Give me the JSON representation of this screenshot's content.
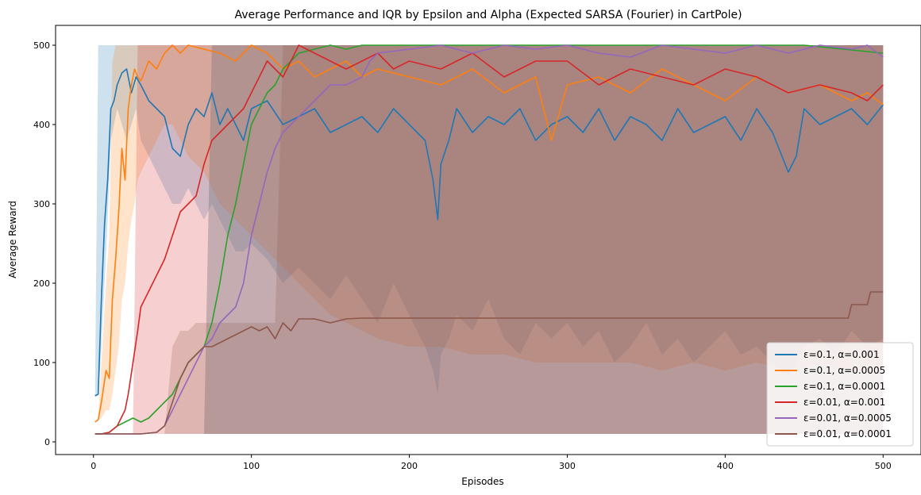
{
  "chart_data": {
    "type": "line",
    "title": "Average Performance and IQR by Epsilon and Alpha (Expected SARSA (Fourier) in CartPole)",
    "xlabel": "Episodes",
    "ylabel": "Average Reward",
    "xlim": [
      -24,
      524
    ],
    "ylim": [
      -16,
      525
    ],
    "xticks": [
      0,
      100,
      200,
      300,
      400,
      500
    ],
    "yticks": [
      0,
      100,
      200,
      300,
      400,
      500
    ],
    "grid": false,
    "legend_position": "bottom-right",
    "series": [
      {
        "name": "ε=0.1, α=0.001",
        "color": "#1f77b4",
        "x": [
          1,
          3,
          5,
          7,
          9,
          11,
          13,
          15,
          18,
          21,
          24,
          27,
          30,
          35,
          40,
          45,
          50,
          55,
          60,
          65,
          70,
          75,
          80,
          85,
          90,
          95,
          100,
          110,
          120,
          130,
          140,
          150,
          160,
          170,
          180,
          190,
          200,
          210,
          215,
          218,
          220,
          225,
          230,
          240,
          250,
          260,
          270,
          280,
          290,
          300,
          310,
          320,
          330,
          340,
          350,
          360,
          370,
          380,
          390,
          400,
          410,
          420,
          430,
          440,
          445,
          450,
          460,
          470,
          480,
          490,
          500
        ],
        "y": [
          58,
          60,
          180,
          275,
          330,
          420,
          430,
          450,
          465,
          470,
          440,
          460,
          450,
          430,
          420,
          410,
          370,
          360,
          400,
          420,
          410,
          440,
          400,
          420,
          400,
          380,
          420,
          430,
          400,
          410,
          420,
          390,
          400,
          410,
          390,
          420,
          400,
          380,
          330,
          280,
          350,
          380,
          420,
          390,
          410,
          400,
          420,
          380,
          400,
          410,
          390,
          420,
          380,
          410,
          400,
          380,
          420,
          390,
          400,
          410,
          380,
          420,
          390,
          340,
          360,
          420,
          400,
          410,
          420,
          400,
          425
        ],
        "q1": [
          58,
          60,
          120,
          200,
          280,
          380,
          400,
          420,
          400,
          380,
          400,
          420,
          380,
          360,
          340,
          320,
          300,
          300,
          320,
          300,
          280,
          300,
          280,
          260,
          240,
          240,
          250,
          230,
          200,
          220,
          200,
          180,
          210,
          180,
          150,
          200,
          160,
          120,
          90,
          60,
          110,
          130,
          160,
          140,
          180,
          130,
          110,
          150,
          130,
          150,
          120,
          140,
          100,
          120,
          150,
          110,
          130,
          100,
          120,
          140,
          110,
          120,
          100,
          80,
          100,
          120,
          130,
          110,
          140,
          120,
          130
        ],
        "q3": [
          60,
          500,
          500,
          500,
          500,
          500,
          500,
          500,
          500,
          500,
          500,
          500,
          500,
          500,
          500,
          500,
          500,
          500,
          500,
          500,
          500,
          500,
          500,
          500,
          500,
          500,
          500,
          500,
          500,
          500,
          500,
          500,
          500,
          500,
          500,
          500,
          500,
          500,
          500,
          500,
          500,
          500,
          500,
          500,
          500,
          500,
          500,
          500,
          500,
          500,
          500,
          500,
          500,
          500,
          500,
          500,
          500,
          500,
          500,
          500,
          500,
          500,
          500,
          500,
          500,
          500,
          500,
          500,
          500,
          500,
          500
        ]
      },
      {
        "name": "ε=0.1, α=0.0005",
        "color": "#ff7f0e",
        "x": [
          1,
          3,
          5,
          8,
          10,
          12,
          14,
          16,
          18,
          20,
          22,
          24,
          26,
          28,
          30,
          35,
          40,
          45,
          50,
          55,
          60,
          70,
          80,
          90,
          100,
          110,
          120,
          130,
          140,
          150,
          160,
          170,
          180,
          200,
          220,
          240,
          260,
          280,
          290,
          300,
          320,
          340,
          360,
          380,
          400,
          420,
          440,
          460,
          480,
          490,
          500
        ],
        "y": [
          25,
          28,
          50,
          90,
          80,
          180,
          230,
          290,
          370,
          330,
          420,
          450,
          470,
          460,
          455,
          480,
          470,
          490,
          500,
          490,
          500,
          495,
          490,
          480,
          500,
          490,
          470,
          480,
          460,
          470,
          480,
          460,
          470,
          460,
          450,
          470,
          440,
          460,
          380,
          450,
          460,
          440,
          470,
          450,
          430,
          460,
          440,
          450,
          430,
          440,
          425
        ],
        "q1": [
          25,
          28,
          30,
          40,
          40,
          60,
          90,
          120,
          180,
          200,
          250,
          280,
          300,
          330,
          340,
          360,
          380,
          400,
          400,
          380,
          360,
          340,
          300,
          280,
          260,
          240,
          220,
          200,
          180,
          160,
          150,
          140,
          130,
          120,
          120,
          110,
          110,
          100,
          100,
          100,
          100,
          100,
          90,
          100,
          90,
          100,
          90,
          100,
          90,
          90,
          90
        ],
        "q3": [
          25,
          30,
          100,
          200,
          260,
          480,
          500,
          500,
          500,
          500,
          500,
          500,
          500,
          500,
          500,
          500,
          500,
          500,
          500,
          500,
          500,
          500,
          500,
          500,
          500,
          500,
          500,
          500,
          500,
          500,
          500,
          500,
          500,
          500,
          500,
          500,
          500,
          500,
          500,
          500,
          500,
          500,
          500,
          500,
          500,
          500,
          500,
          500,
          500,
          500,
          500
        ]
      },
      {
        "name": "ε=0.1, α=0.0001",
        "color": "#2ca02c",
        "x": [
          1,
          5,
          10,
          15,
          20,
          25,
          30,
          35,
          40,
          45,
          50,
          55,
          60,
          65,
          70,
          75,
          80,
          85,
          90,
          95,
          100,
          105,
          110,
          115,
          120,
          125,
          130,
          140,
          150,
          160,
          170,
          180,
          200,
          250,
          300,
          350,
          400,
          450,
          500
        ],
        "y": [
          10,
          10,
          12,
          20,
          25,
          30,
          25,
          30,
          40,
          50,
          60,
          80,
          100,
          110,
          120,
          150,
          200,
          260,
          300,
          350,
          400,
          420,
          440,
          450,
          470,
          480,
          490,
          495,
          500,
          495,
          500,
          500,
          500,
          500,
          500,
          500,
          500,
          500,
          490
        ],
        "q1": [
          10,
          10,
          10,
          10,
          10,
          10,
          10,
          10,
          10,
          10,
          10,
          10,
          10,
          10,
          10,
          10,
          10,
          10,
          10,
          10,
          10,
          10,
          10,
          10,
          10,
          10,
          10,
          10,
          10,
          10,
          10,
          10,
          10,
          10,
          10,
          10,
          10,
          10,
          10
        ],
        "q3": [
          10,
          10,
          10,
          10,
          10,
          10,
          10,
          10,
          10,
          10,
          10,
          10,
          10,
          10,
          10,
          500,
          500,
          500,
          500,
          500,
          500,
          500,
          500,
          500,
          500,
          500,
          500,
          500,
          500,
          500,
          500,
          500,
          500,
          500,
          500,
          500,
          500,
          500,
          500
        ]
      },
      {
        "name": "ε=0.01, α=0.001",
        "color": "#d62728",
        "x": [
          1,
          5,
          10,
          15,
          20,
          22,
          25,
          28,
          30,
          35,
          40,
          45,
          50,
          55,
          60,
          65,
          70,
          75,
          80,
          85,
          90,
          95,
          100,
          105,
          110,
          115,
          120,
          125,
          130,
          135,
          140,
          145,
          150,
          160,
          170,
          180,
          190,
          200,
          220,
          240,
          260,
          280,
          300,
          320,
          340,
          360,
          380,
          400,
          420,
          440,
          460,
          480,
          490,
          500
        ],
        "y": [
          10,
          10,
          12,
          20,
          40,
          60,
          100,
          140,
          170,
          190,
          210,
          230,
          260,
          290,
          300,
          310,
          350,
          380,
          390,
          400,
          410,
          420,
          440,
          460,
          480,
          470,
          460,
          480,
          500,
          495,
          490,
          485,
          480,
          470,
          480,
          490,
          470,
          480,
          470,
          490,
          460,
          480,
          480,
          450,
          470,
          460,
          450,
          470,
          460,
          440,
          450,
          440,
          430,
          450
        ],
        "q1": [
          10,
          10,
          10,
          10,
          10,
          10,
          10,
          10,
          10,
          10,
          10,
          10,
          10,
          10,
          10,
          10,
          10,
          10,
          10,
          10,
          10,
          10,
          10,
          10,
          10,
          10,
          10,
          10,
          10,
          10,
          10,
          10,
          10,
          10,
          10,
          10,
          10,
          10,
          10,
          10,
          10,
          10,
          10,
          10,
          10,
          10,
          10,
          10,
          10,
          10,
          10,
          10,
          10,
          10
        ],
        "q3": [
          10,
          10,
          10,
          10,
          10,
          10,
          10,
          500,
          500,
          500,
          500,
          500,
          500,
          500,
          500,
          500,
          500,
          500,
          500,
          500,
          500,
          500,
          500,
          500,
          500,
          500,
          500,
          500,
          500,
          500,
          500,
          500,
          500,
          500,
          500,
          500,
          500,
          500,
          500,
          500,
          500,
          500,
          500,
          500,
          500,
          500,
          500,
          500,
          500,
          500,
          500,
          500,
          500,
          500
        ]
      },
      {
        "name": "ε=0.01, α=0.0005",
        "color": "#9467bd",
        "x": [
          1,
          10,
          20,
          30,
          40,
          45,
          50,
          55,
          60,
          65,
          70,
          75,
          80,
          85,
          90,
          95,
          100,
          105,
          110,
          115,
          120,
          125,
          130,
          140,
          150,
          160,
          170,
          175,
          180,
          200,
          220,
          240,
          260,
          280,
          300,
          320,
          340,
          360,
          380,
          400,
          420,
          440,
          460,
          480,
          490,
          500
        ],
        "y": [
          10,
          10,
          10,
          10,
          12,
          20,
          40,
          60,
          80,
          100,
          120,
          130,
          150,
          160,
          170,
          200,
          260,
          300,
          340,
          370,
          390,
          400,
          410,
          430,
          450,
          450,
          460,
          480,
          490,
          495,
          500,
          490,
          500,
          495,
          500,
          490,
          485,
          500,
          495,
          490,
          500,
          490,
          500,
          495,
          500,
          485
        ],
        "q1": [
          10,
          10,
          10,
          10,
          10,
          10,
          10,
          10,
          10,
          10,
          10,
          10,
          10,
          10,
          10,
          10,
          10,
          10,
          10,
          10,
          10,
          10,
          10,
          10,
          10,
          10,
          10,
          10,
          10,
          10,
          10,
          10,
          10,
          10,
          10,
          10,
          10,
          10,
          10,
          10,
          10,
          10,
          10,
          10,
          10,
          10
        ],
        "q3": [
          10,
          10,
          10,
          10,
          10,
          10,
          10,
          10,
          10,
          10,
          10,
          500,
          500,
          500,
          500,
          500,
          500,
          500,
          500,
          500,
          500,
          500,
          500,
          500,
          500,
          500,
          500,
          500,
          500,
          500,
          500,
          500,
          500,
          500,
          500,
          500,
          500,
          500,
          500,
          500,
          500,
          500,
          500,
          500,
          500,
          500
        ]
      },
      {
        "name": "ε=0.01, α=0.0001",
        "color": "#8c564b",
        "x": [
          1,
          10,
          20,
          30,
          40,
          45,
          50,
          55,
          60,
          65,
          70,
          75,
          80,
          85,
          90,
          95,
          100,
          105,
          110,
          115,
          120,
          125,
          130,
          140,
          150,
          160,
          170,
          200,
          250,
          300,
          350,
          400,
          450,
          470,
          478,
          480,
          490,
          492,
          500
        ],
        "y": [
          10,
          10,
          10,
          10,
          12,
          20,
          50,
          80,
          100,
          110,
          120,
          120,
          125,
          130,
          135,
          140,
          145,
          140,
          145,
          130,
          150,
          140,
          155,
          155,
          150,
          155,
          156,
          156,
          156,
          156,
          156,
          156,
          156,
          156,
          156,
          173,
          173,
          189,
          189
        ],
        "q1": [
          10,
          10,
          10,
          10,
          10,
          10,
          10,
          10,
          10,
          10,
          10,
          10,
          10,
          10,
          10,
          10,
          10,
          10,
          10,
          10,
          10,
          10,
          10,
          10,
          10,
          10,
          10,
          10,
          10,
          10,
          10,
          10,
          10,
          10,
          10,
          10,
          10,
          10,
          10
        ],
        "q3": [
          10,
          10,
          10,
          10,
          10,
          10,
          120,
          140,
          140,
          150,
          150,
          150,
          150,
          150,
          150,
          150,
          150,
          150,
          150,
          150,
          500,
          500,
          500,
          500,
          500,
          500,
          500,
          500,
          500,
          500,
          500,
          500,
          500,
          500,
          500,
          500,
          500,
          500,
          500
        ]
      }
    ]
  }
}
